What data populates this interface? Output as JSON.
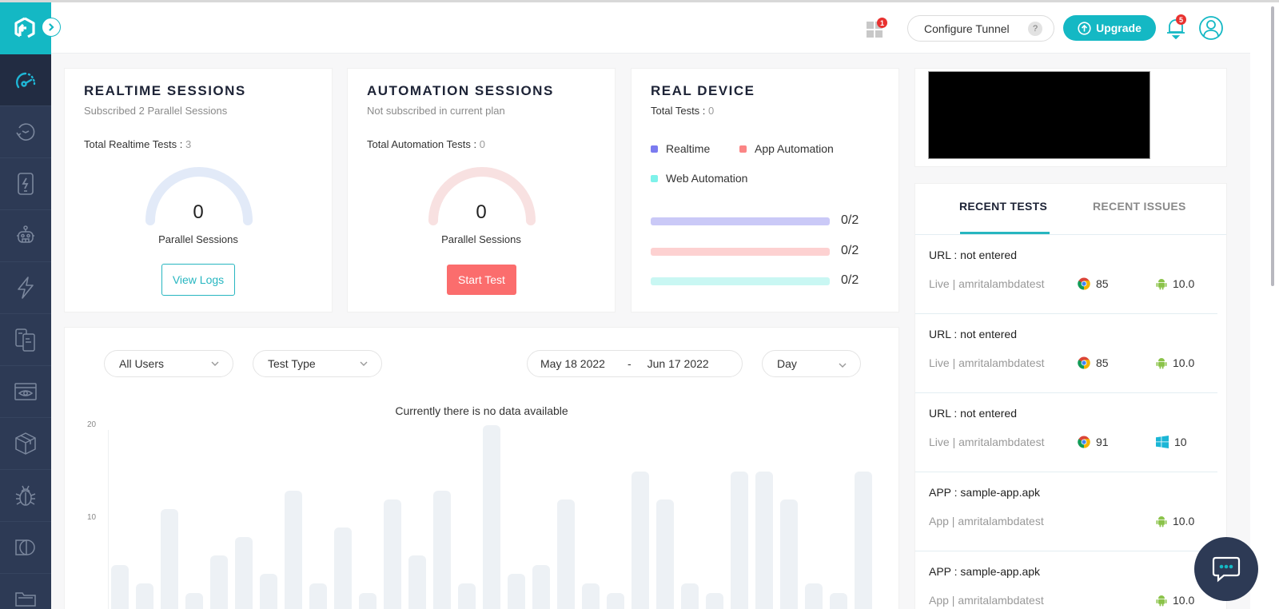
{
  "header": {
    "apps_badge": "1",
    "configure_tunnel": "Configure Tunnel",
    "help_glyph": "?",
    "upgrade": "Upgrade",
    "notifications_badge": "5"
  },
  "sidebar": {
    "items": [
      {
        "icon": "dashboard-gauge-icon",
        "active": true
      },
      {
        "icon": "history-clock-icon"
      },
      {
        "icon": "mobile-flash-icon"
      },
      {
        "icon": "robot-icon"
      },
      {
        "icon": "lightning-icon"
      },
      {
        "icon": "devices-icon"
      },
      {
        "icon": "visual-eye-icon"
      },
      {
        "icon": "package-box-icon"
      },
      {
        "icon": "bug-icon"
      },
      {
        "icon": "compare-icon"
      },
      {
        "icon": "folder-icon"
      }
    ]
  },
  "realtime": {
    "title": "REALTIME SESSIONS",
    "subtitle": "Subscribed 2 Parallel Sessions",
    "total_label": "Total Realtime Tests :",
    "total_value": "3",
    "gauge_value": "0",
    "gauge_label": "Parallel Sessions",
    "button": "View Logs"
  },
  "automation": {
    "title": "AUTOMATION SESSIONS",
    "subtitle": "Not subscribed in current plan",
    "total_label": "Total Automation Tests :",
    "total_value": "0",
    "gauge_value": "0",
    "gauge_label": "Parallel Sessions",
    "button": "Start Test"
  },
  "real_device": {
    "title": "REAL DEVICE",
    "total_label": "Total Tests :",
    "total_value": "0",
    "legend": [
      {
        "label": "Realtime",
        "color": "#7b7bf0"
      },
      {
        "label": "App Automation",
        "color": "#fb8585"
      },
      {
        "label": "Web Automation",
        "color": "#7ef2ea"
      }
    ],
    "bars": [
      {
        "value": "0/2",
        "color": "#cac9f7"
      },
      {
        "value": "0/2",
        "color": "#fdd1d1"
      },
      {
        "value": "0/2",
        "color": "#c9f7f3"
      }
    ]
  },
  "filters": {
    "users": "All Users",
    "test_type": "Test Type",
    "date_from": "May 18 2022",
    "date_sep": "-",
    "date_to": "Jun 17 2022",
    "granularity": "Day"
  },
  "chart_data": {
    "type": "bar",
    "title": "Currently there is no data available",
    "xlabel": "",
    "ylabel": "",
    "yticks": [
      "20",
      "10"
    ],
    "ylim": [
      0,
      20
    ],
    "placeholder": true,
    "values": [
      5,
      3,
      11,
      2,
      6,
      8,
      4,
      13,
      3,
      9,
      2,
      12,
      6,
      13,
      3,
      20,
      4,
      5,
      12,
      3,
      2,
      15,
      12,
      3,
      2,
      15,
      15,
      12,
      3,
      2,
      15
    ]
  },
  "recent": {
    "tabs": [
      "RECENT TESTS",
      "RECENT ISSUES"
    ],
    "active_tab": 0,
    "items": [
      {
        "title": "URL : not entered",
        "meta": "Live | amritalambdatest",
        "browser": "chrome",
        "browser_version": "85",
        "os": "android",
        "os_version": "10.0"
      },
      {
        "title": "URL : not entered",
        "meta": "Live | amritalambdatest",
        "browser": "chrome",
        "browser_version": "85",
        "os": "android",
        "os_version": "10.0"
      },
      {
        "title": "URL : not entered",
        "meta": "Live | amritalambdatest",
        "browser": "chrome",
        "browser_version": "91",
        "os": "windows",
        "os_version": "10"
      },
      {
        "title": "APP : sample-app.apk",
        "meta": "App | amritalambdatest",
        "browser": "",
        "browser_version": "",
        "os": "android",
        "os_version": "10.0"
      },
      {
        "title": "APP : sample-app.apk",
        "meta": "App | amritalambdatest",
        "browser": "",
        "browser_version": "",
        "os": "android",
        "os_version": "10.0"
      }
    ]
  },
  "colors": {
    "brand": "#14b8c4",
    "sidebar": "#2d3a55",
    "danger": "#fb6d6d"
  }
}
